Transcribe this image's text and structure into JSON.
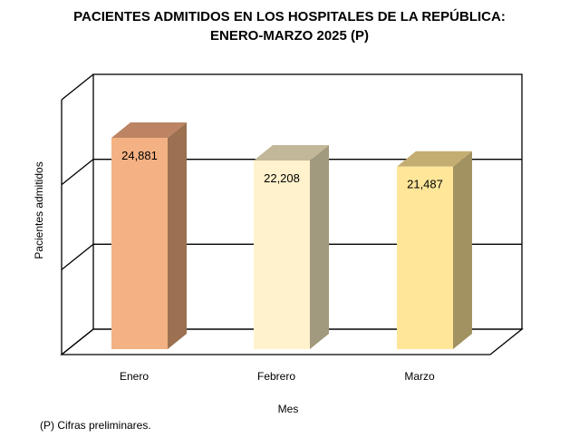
{
  "chart_data": {
    "type": "bar",
    "title": "PACIENTES ADMITIDOS EN LOS HOSPITALES DE LA REPÚBLICA:",
    "subtitle": "ENERO-MARZO 2025 (P)",
    "categories": [
      "Enero",
      "Febrero",
      "Marzo"
    ],
    "values": [
      24881,
      22208,
      21487
    ],
    "labels": [
      "24,881",
      "22,208",
      "21,487"
    ],
    "xlabel": "Mes",
    "ylabel": "Pacientes  admitidos",
    "ylim": [
      0,
      30000
    ],
    "grid": true,
    "colors": {
      "front": [
        "#F4B183",
        "#FFF2CC",
        "#FFE699"
      ],
      "side": [
        "#9B7151",
        "#A29A7E",
        "#A39261"
      ],
      "top": [
        "#BC8462",
        "#C2B798",
        "#C4AD70"
      ]
    }
  },
  "footnote": "(P) Cifras preliminares."
}
